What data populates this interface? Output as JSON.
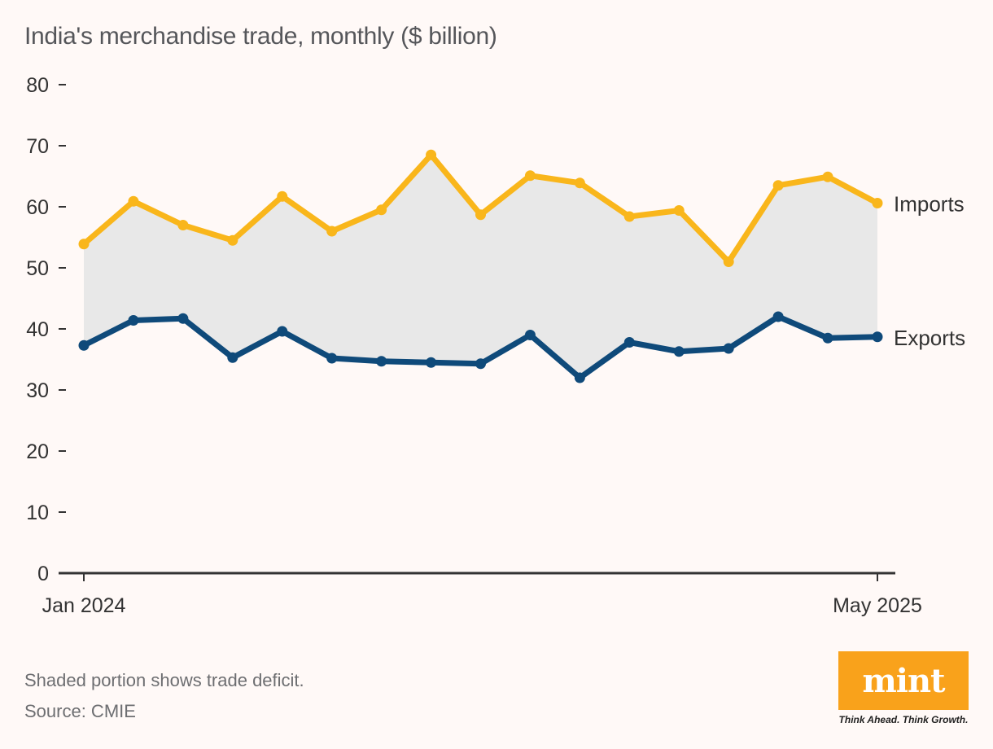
{
  "title": "India's merchandise trade, monthly ($ billion)",
  "footnote": "Shaded portion shows trade deficit.",
  "source": "Source: CMIE",
  "logo": {
    "text": "mint",
    "tagline": "Think Ahead. Think Growth.",
    "color": "#f9a21b"
  },
  "colors": {
    "imports": "#f9b61b",
    "exports": "#0f4a7a",
    "deficit": "#e8e8e8",
    "axis": "#333333",
    "text": "#333333"
  },
  "chart_data": {
    "type": "line",
    "title": "India's merchandise trade, monthly ($ billion)",
    "xlabel": "",
    "ylabel": "",
    "ylim": [
      0,
      80
    ],
    "yticks": [
      0,
      10,
      20,
      30,
      40,
      50,
      60,
      70,
      80
    ],
    "xtick_labels": [
      "Jan 2024",
      "May 2025"
    ],
    "categories": [
      "Jan 2024",
      "Feb 2024",
      "Mar 2024",
      "Apr 2024",
      "May 2024",
      "Jun 2024",
      "Jul 2024",
      "Aug 2024",
      "Sep 2024",
      "Oct 2024",
      "Nov 2024",
      "Dec 2024",
      "Jan 2025",
      "Feb 2025",
      "Mar 2025",
      "Apr 2025",
      "May 2025"
    ],
    "series": [
      {
        "name": "Imports",
        "values": [
          53.9,
          60.9,
          57.0,
          54.5,
          61.7,
          56.0,
          59.5,
          68.5,
          58.7,
          65.1,
          63.9,
          58.4,
          59.4,
          51.0,
          63.5,
          64.9,
          60.6
        ]
      },
      {
        "name": "Exports",
        "values": [
          37.3,
          41.4,
          41.7,
          35.3,
          39.6,
          35.2,
          34.7,
          34.5,
          34.3,
          39.0,
          32.0,
          37.8,
          36.3,
          36.8,
          42.0,
          38.5,
          38.7
        ]
      }
    ],
    "shaded_region": "Trade deficit (between Imports and Exports)"
  }
}
